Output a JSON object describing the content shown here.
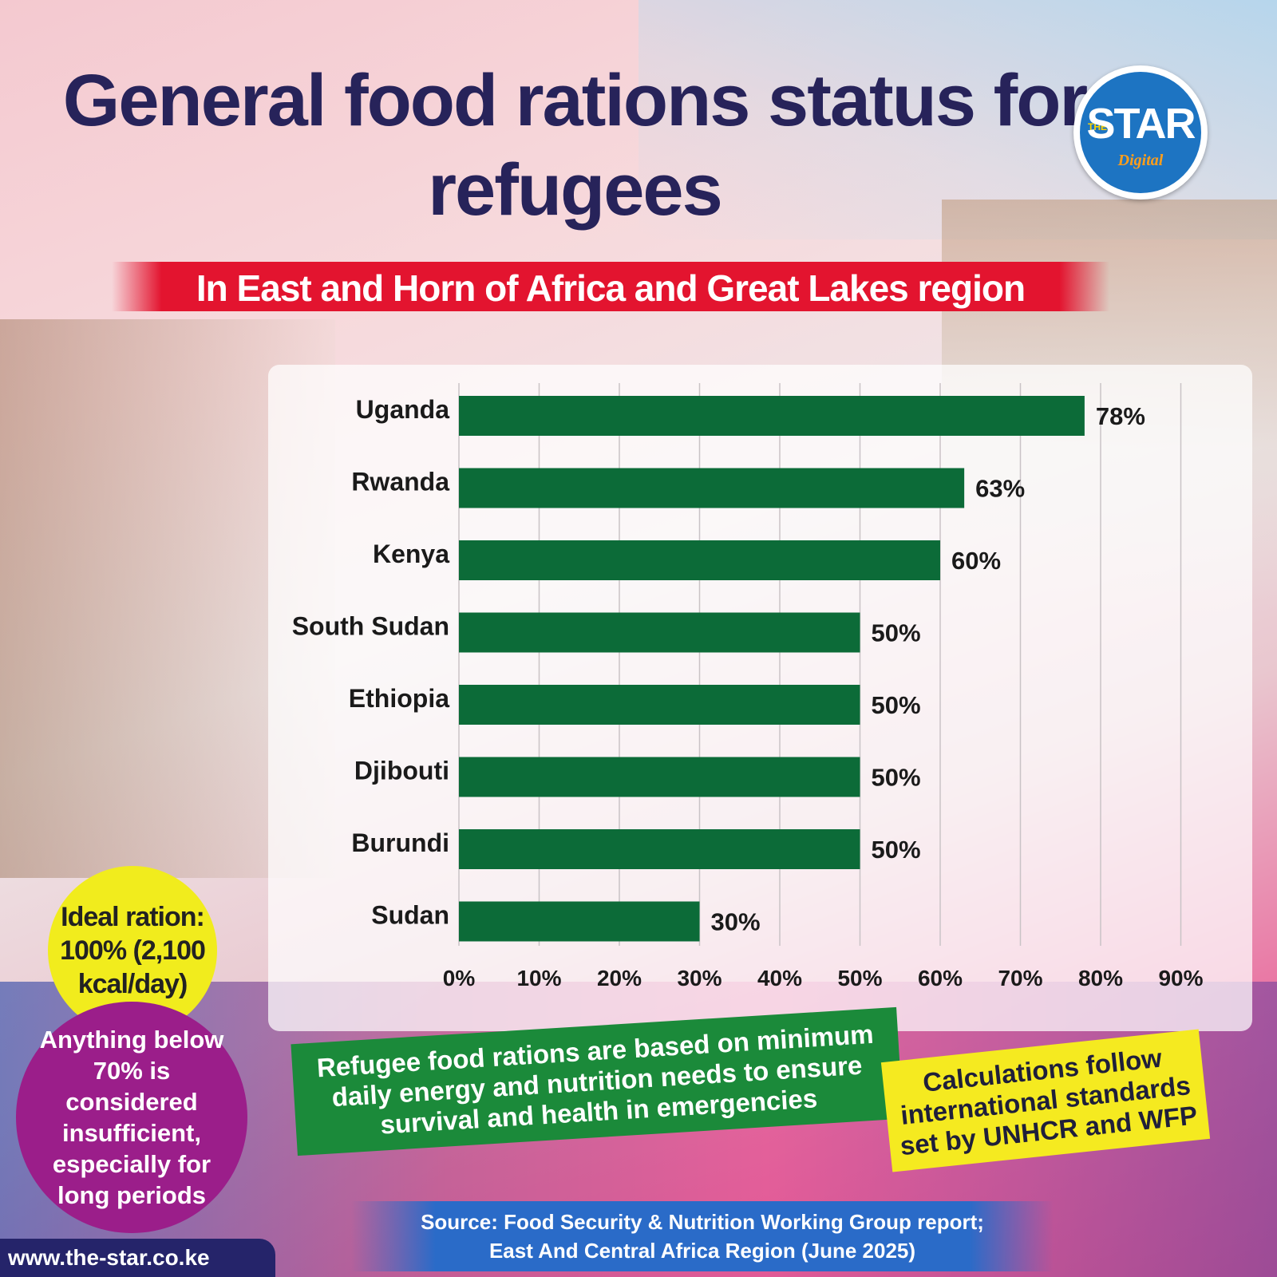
{
  "header": {
    "title": "General food rations status for refugees",
    "subtitle": "In East and Horn of Africa and Great Lakes region"
  },
  "logo": {
    "the": "THE",
    "star": "STAR",
    "digital": "Digital"
  },
  "chart_data": {
    "type": "bar",
    "orientation": "horizontal",
    "categories": [
      "Uganda",
      "Rwanda",
      "Kenya",
      "South Sudan",
      "Ethiopia",
      "Djibouti",
      "Burundi",
      "Sudan"
    ],
    "values": [
      78,
      63,
      60,
      50,
      50,
      50,
      50,
      30
    ],
    "value_labels": [
      "78%",
      "63%",
      "60%",
      "50%",
      "50%",
      "50%",
      "50%",
      "30%"
    ],
    "x_ticks": [
      "0%",
      "10%",
      "20%",
      "30%",
      "40%",
      "50%",
      "60%",
      "70%",
      "80%",
      "90%"
    ],
    "xlim": [
      0,
      90
    ],
    "grid": "vertical",
    "bar_color": "#0c6b38"
  },
  "notes": {
    "ideal_ration": "Ideal ration: 100% (2,100 kcal/day)",
    "insufficient": "Anything below 70% is considered insufficient, especially for long periods",
    "basis": "Refugee food rations are based on minimum daily energy and nutrition needs to ensure survival and health in emergencies",
    "standards": "Calculations follow international standards set by UNHCR and WFP"
  },
  "source": {
    "line1": "Source: Food Security & Nutrition Working Group report;",
    "line2": "East And Central Africa Region (June 2025)"
  },
  "url": "www.the-star.co.ke"
}
